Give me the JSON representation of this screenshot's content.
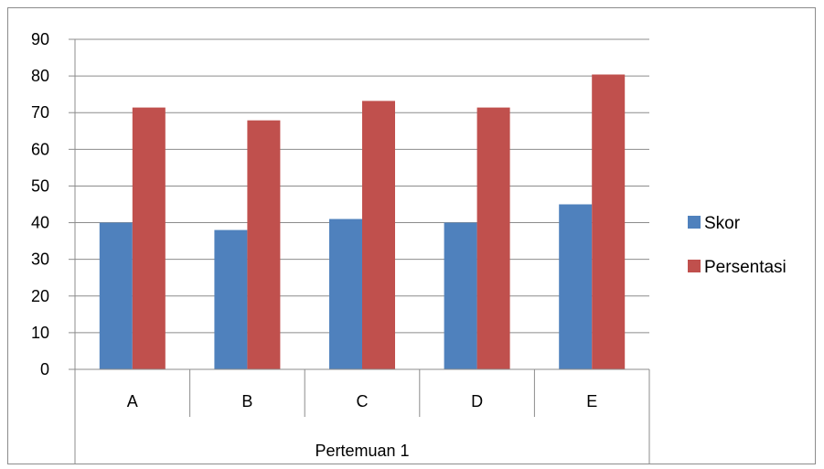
{
  "chart_data": {
    "type": "bar",
    "group_label": "Pertemuan 1",
    "categories": [
      "A",
      "B",
      "C",
      "D",
      "E"
    ],
    "series": [
      {
        "name": "Skor",
        "values": [
          40,
          38,
          41,
          40,
          45
        ],
        "color": "#4f81bd"
      },
      {
        "name": "Persentasi",
        "values": [
          71.4,
          67.9,
          73.2,
          71.4,
          80.4
        ],
        "color": "#c0504d"
      }
    ],
    "ylim": [
      0,
      90
    ],
    "yticks": [
      "0",
      "10",
      "20",
      "30",
      "40",
      "50",
      "60",
      "70",
      "80",
      "90"
    ],
    "ytick_values": [
      0,
      10,
      20,
      30,
      40,
      50,
      60,
      70,
      80,
      90
    ],
    "grid": true,
    "legend": "right"
  }
}
